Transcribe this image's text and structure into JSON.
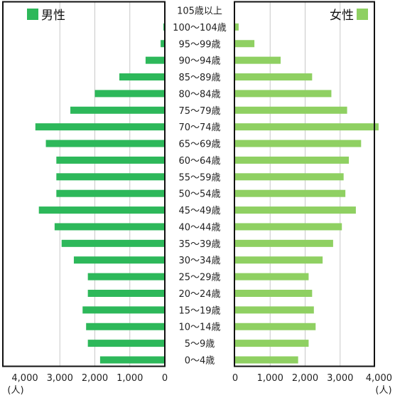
{
  "chart_data": {
    "type": "bar",
    "orientation": "horizontal-population-pyramid",
    "categories": [
      "0〜4歳",
      "5〜9歳",
      "10〜14歳",
      "15〜19歳",
      "20〜24歳",
      "25〜29歳",
      "30〜34歳",
      "35〜39歳",
      "40〜44歳",
      "45〜49歳",
      "50〜54歳",
      "55〜59歳",
      "60〜64歳",
      "65〜69歳",
      "70〜74歳",
      "75〜79歳",
      "80〜84歳",
      "85〜89歳",
      "90〜94歳",
      "95〜99歳",
      "100〜104歳",
      "105歳以上"
    ],
    "series": [
      {
        "name": "男性",
        "color": "#2db85a",
        "values": [
          1850,
          2200,
          2250,
          2350,
          2200,
          2200,
          2600,
          2950,
          3150,
          3600,
          3100,
          3100,
          3100,
          3400,
          3700,
          2700,
          2000,
          1300,
          550,
          120,
          40,
          0
        ]
      },
      {
        "name": "女性",
        "color": "#8fd062",
        "values": [
          1800,
          2100,
          2300,
          2250,
          2200,
          2100,
          2500,
          2800,
          3050,
          3450,
          3150,
          3100,
          3250,
          3600,
          4100,
          3200,
          2750,
          2200,
          1300,
          550,
          100,
          0
        ]
      }
    ],
    "xlim": [
      0,
      4000
    ],
    "male_ticks": [
      "4,000",
      "3,000",
      "2,000",
      "1,000",
      "0"
    ],
    "female_ticks": [
      "0",
      "1,000",
      "2,000",
      "3,000",
      "4,000"
    ],
    "unit_left": "(人)",
    "unit_right": "(人)",
    "grid": true,
    "legend_placement": "top-left and top-right"
  }
}
